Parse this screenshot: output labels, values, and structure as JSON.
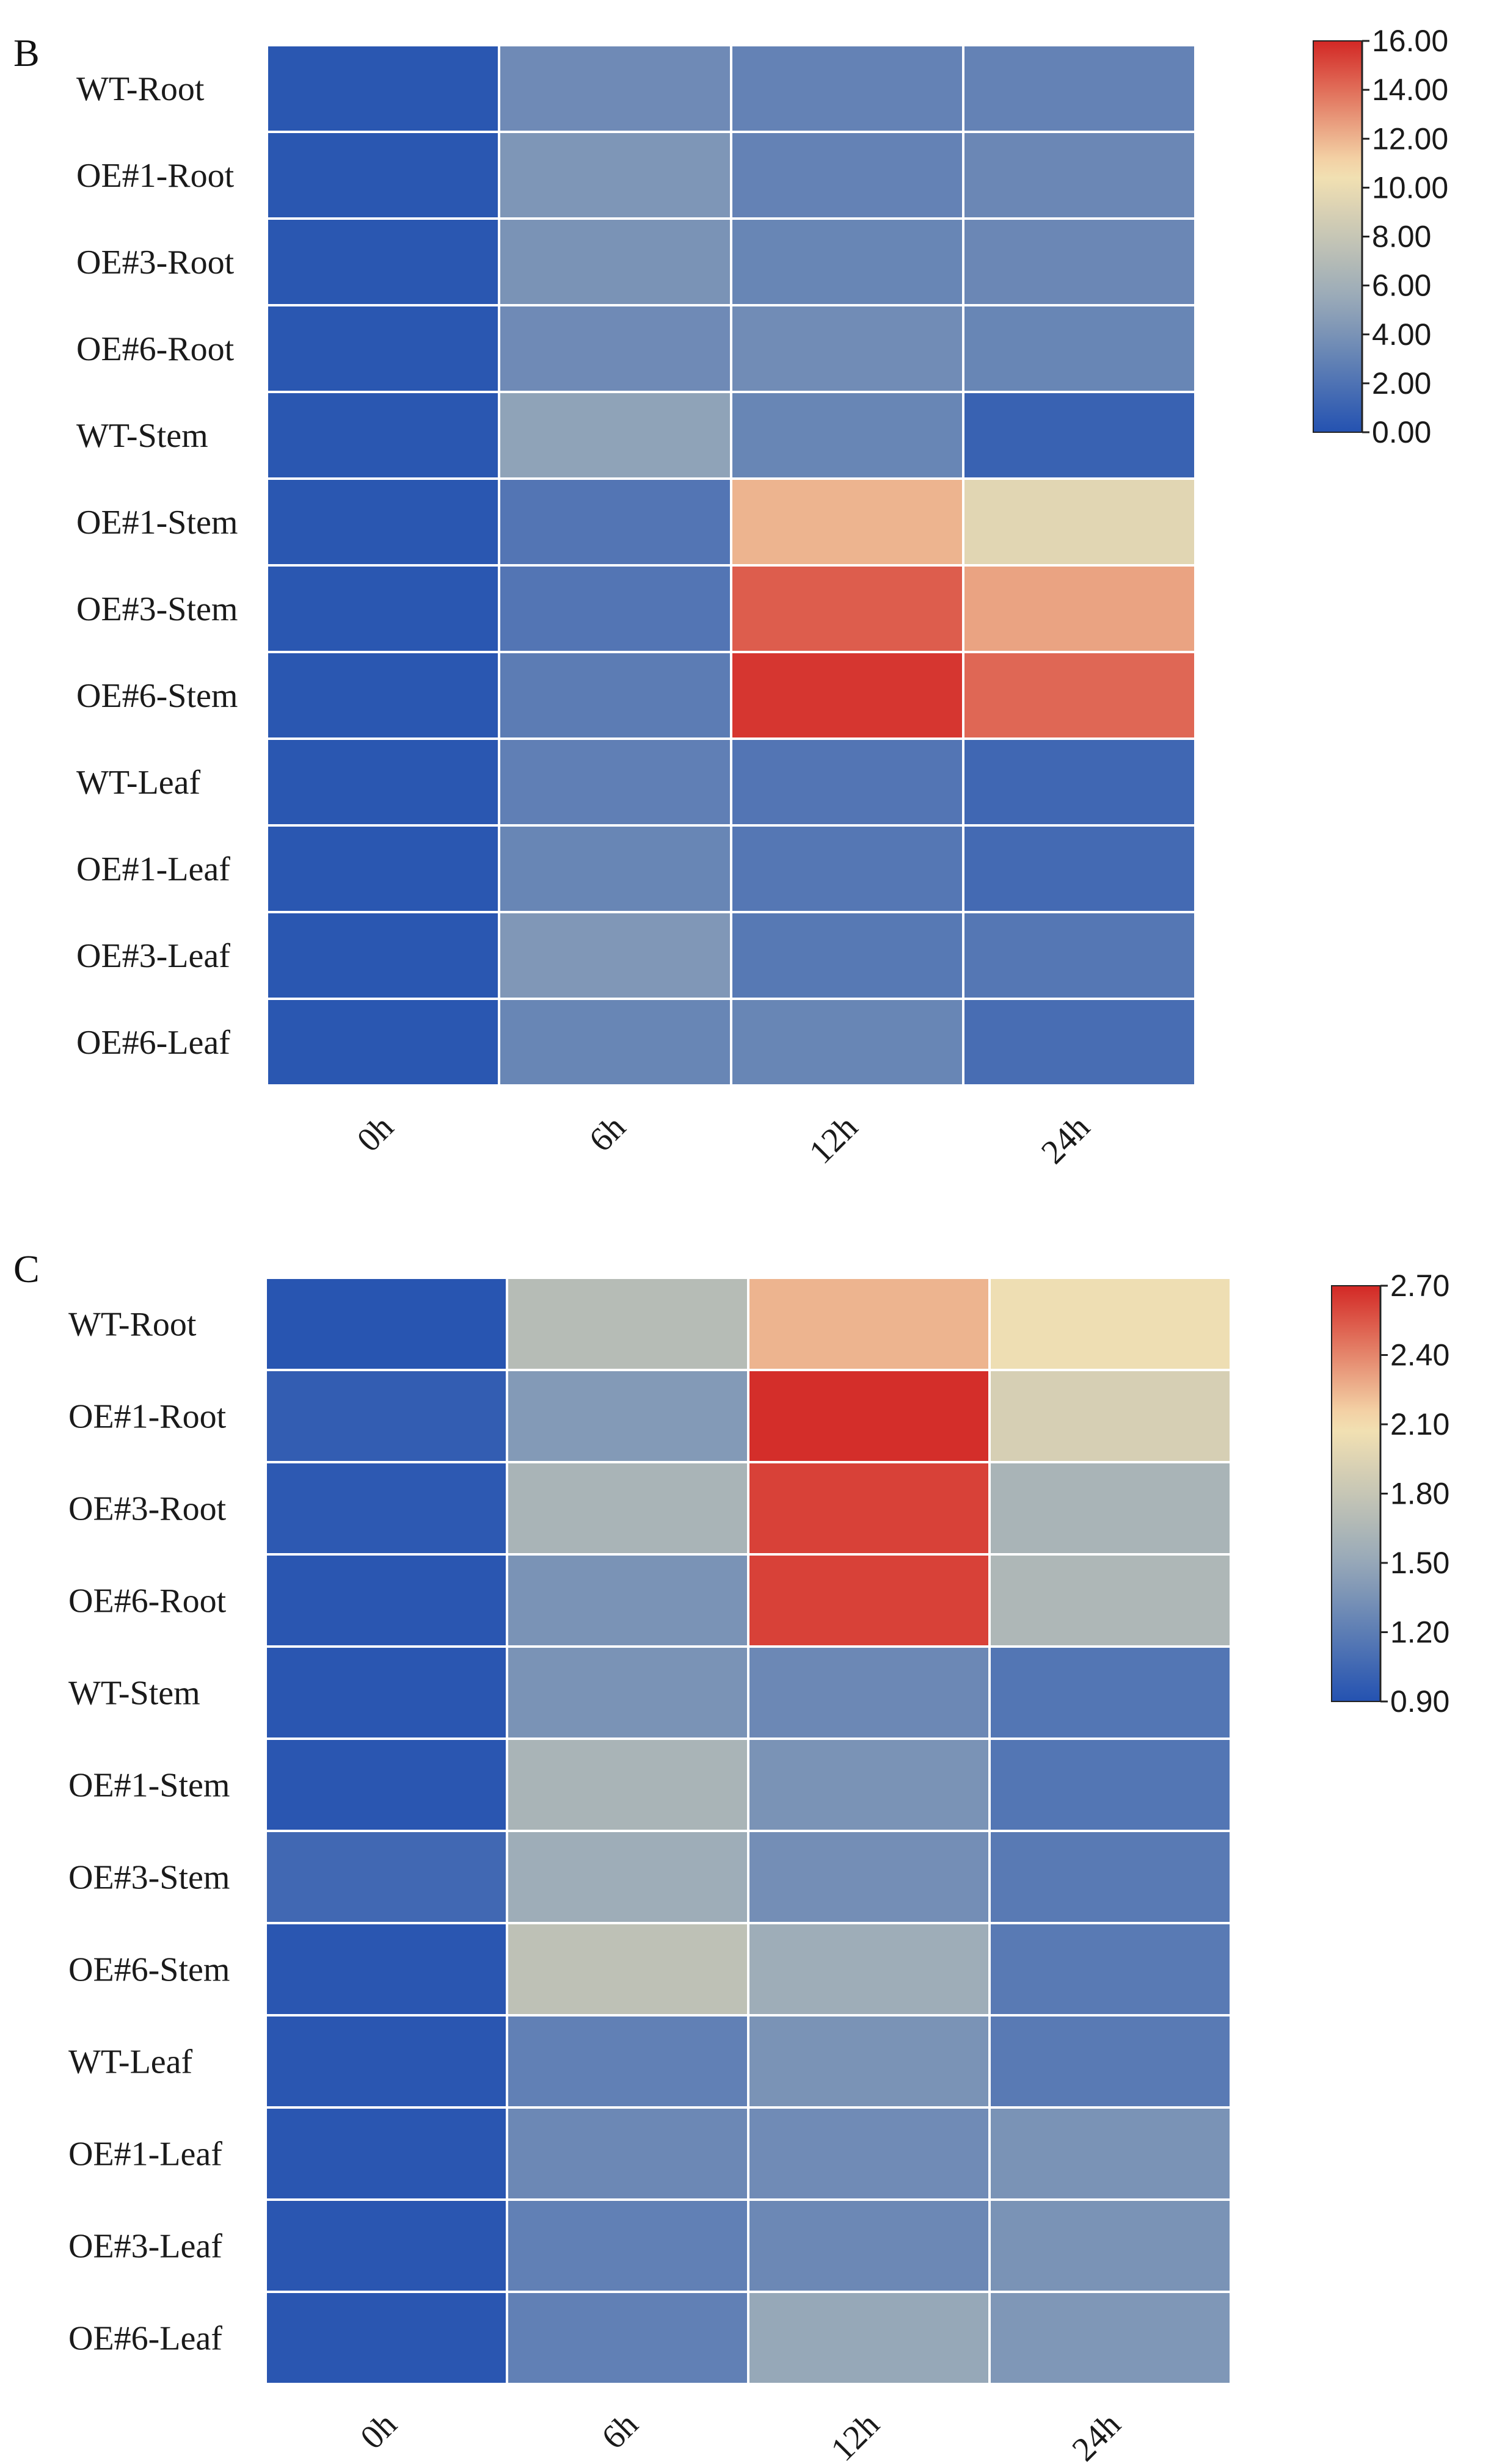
{
  "chart_data": [
    {
      "type": "heatmap",
      "panel": "B",
      "title": "",
      "xlabel": "",
      "ylabel": "",
      "columns": [
        "0h",
        "6h",
        "12h",
        "24h"
      ],
      "rows": [
        "WT-Root",
        "OE#1-Root",
        "OE#3-Root",
        "OE#6-Root",
        "WT-Stem",
        "OE#1-Stem",
        "OE#3-Stem",
        "OE#6-Stem",
        "WT-Leaf",
        "OE#1-Leaf",
        "OE#3-Leaf",
        "OE#6-Leaf"
      ],
      "values": [
        [
          0.3,
          3.5,
          3.0,
          3.0
        ],
        [
          0.3,
          4.2,
          3.0,
          3.3
        ],
        [
          0.3,
          4.0,
          3.2,
          3.3
        ],
        [
          0.3,
          3.5,
          3.6,
          3.2
        ],
        [
          0.3,
          5.0,
          3.2,
          1.0
        ],
        [
          0.3,
          2.2,
          12.0,
          9.5
        ],
        [
          0.3,
          2.2,
          14.5,
          12.5
        ],
        [
          0.3,
          2.6,
          15.6,
          14.2
        ],
        [
          0.3,
          2.8,
          2.2,
          1.3
        ],
        [
          0.3,
          3.2,
          2.3,
          1.5
        ],
        [
          0.3,
          4.3,
          2.4,
          2.3
        ],
        [
          0.3,
          3.2,
          3.2,
          1.7
        ]
      ],
      "colorbar": {
        "min": 0,
        "max": 16,
        "ticks": [
          0,
          2,
          4,
          6,
          8,
          10,
          12,
          14,
          16
        ],
        "tick_labels": [
          "0.00",
          "2.00",
          "4.00",
          "6.00",
          "8.00",
          "10.00",
          "12.00",
          "14.00",
          "16.00"
        ]
      }
    },
    {
      "type": "heatmap",
      "panel": "C",
      "title": "",
      "xlabel": "",
      "ylabel": "",
      "columns": [
        "0h",
        "6h",
        "12h",
        "24h"
      ],
      "rows": [
        "WT-Root",
        "OE#1-Root",
        "OE#3-Root",
        "OE#6-Root",
        "WT-Stem",
        "OE#1-Stem",
        "OE#3-Stem",
        "OE#6-Stem",
        "WT-Leaf",
        "OE#1-Leaf",
        "OE#3-Leaf",
        "OE#6-Leaf"
      ],
      "values": [
        [
          0.92,
          1.7,
          2.25,
          2.05
        ],
        [
          0.98,
          1.4,
          2.68,
          1.9
        ],
        [
          0.95,
          1.62,
          2.62,
          1.62
        ],
        [
          0.93,
          1.35,
          2.62,
          1.65
        ],
        [
          0.93,
          1.35,
          1.28,
          1.15
        ],
        [
          0.93,
          1.62,
          1.35,
          1.15
        ],
        [
          1.05,
          1.55,
          1.32,
          1.18
        ],
        [
          0.93,
          1.75,
          1.55,
          1.18
        ],
        [
          0.93,
          1.22,
          1.35,
          1.18
        ],
        [
          0.93,
          1.28,
          1.3,
          1.35
        ],
        [
          0.93,
          1.22,
          1.28,
          1.35
        ],
        [
          0.93,
          1.22,
          1.5,
          1.38
        ]
      ],
      "colorbar": {
        "min": 0.9,
        "max": 2.7,
        "ticks": [
          0.9,
          1.2,
          1.5,
          1.8,
          2.1,
          2.4,
          2.7
        ],
        "tick_labels": [
          "0.90",
          "1.20",
          "1.50",
          "1.80",
          "2.10",
          "2.40",
          "2.70"
        ]
      }
    }
  ],
  "colors": {
    "scale": [
      "#2452b1",
      "#96a8b8",
      "#f6e3b2",
      "#d32825"
    ],
    "grid": "#ffffff",
    "text": "#1a1a1a",
    "axis": "#222222"
  }
}
